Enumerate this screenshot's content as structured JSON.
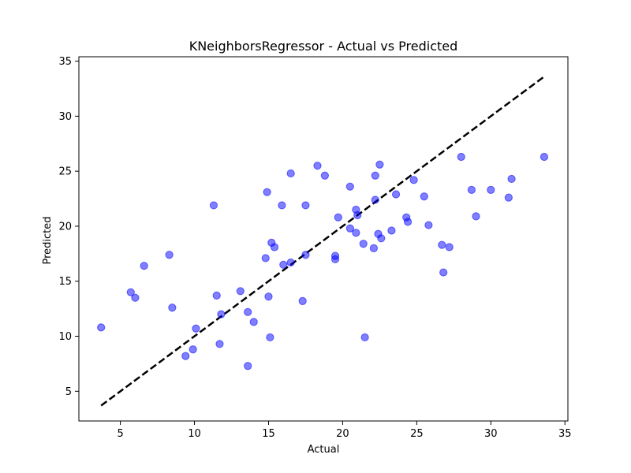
{
  "chart_data": {
    "type": "scatter",
    "title": "KNeighborsRegressor - Actual vs Predicted",
    "xlabel": "Actual",
    "ylabel": "Predicted",
    "xlim": [
      2.2,
      35.2
    ],
    "ylim": [
      2.3,
      35.4
    ],
    "xticks": [
      5,
      10,
      15,
      20,
      25,
      30,
      35
    ],
    "yticks": [
      5,
      10,
      15,
      20,
      25,
      30,
      35
    ],
    "grid": false,
    "point_color": "#0000ff",
    "point_alpha": 0.5,
    "reference_line": {
      "style": "dashed",
      "color": "#000000",
      "from": [
        3.7,
        3.7
      ],
      "to": [
        33.6,
        33.6
      ]
    },
    "points": [
      {
        "x": 3.7,
        "y": 10.8
      },
      {
        "x": 5.7,
        "y": 14.0
      },
      {
        "x": 6.0,
        "y": 13.5
      },
      {
        "x": 6.6,
        "y": 16.4
      },
      {
        "x": 8.3,
        "y": 17.4
      },
      {
        "x": 8.5,
        "y": 12.6
      },
      {
        "x": 9.4,
        "y": 8.2
      },
      {
        "x": 9.9,
        "y": 8.8
      },
      {
        "x": 10.1,
        "y": 10.7
      },
      {
        "x": 11.3,
        "y": 21.9
      },
      {
        "x": 11.5,
        "y": 13.7
      },
      {
        "x": 11.7,
        "y": 9.3
      },
      {
        "x": 11.8,
        "y": 12.0
      },
      {
        "x": 13.1,
        "y": 14.1
      },
      {
        "x": 13.6,
        "y": 12.2
      },
      {
        "x": 13.6,
        "y": 7.3
      },
      {
        "x": 14.0,
        "y": 11.3
      },
      {
        "x": 14.8,
        "y": 17.1
      },
      {
        "x": 14.9,
        "y": 23.1
      },
      {
        "x": 15.0,
        "y": 13.6
      },
      {
        "x": 15.1,
        "y": 9.9
      },
      {
        "x": 15.2,
        "y": 18.5
      },
      {
        "x": 15.4,
        "y": 18.1
      },
      {
        "x": 15.9,
        "y": 21.9
      },
      {
        "x": 16.0,
        "y": 16.5
      },
      {
        "x": 16.5,
        "y": 16.7
      },
      {
        "x": 16.5,
        "y": 24.8
      },
      {
        "x": 17.3,
        "y": 13.2
      },
      {
        "x": 17.5,
        "y": 17.4
      },
      {
        "x": 17.5,
        "y": 21.9
      },
      {
        "x": 18.3,
        "y": 25.5
      },
      {
        "x": 18.8,
        "y": 24.6
      },
      {
        "x": 19.5,
        "y": 17.3
      },
      {
        "x": 19.5,
        "y": 17.0
      },
      {
        "x": 19.7,
        "y": 20.8
      },
      {
        "x": 20.5,
        "y": 23.6
      },
      {
        "x": 20.5,
        "y": 19.8
      },
      {
        "x": 20.9,
        "y": 21.5
      },
      {
        "x": 20.9,
        "y": 19.4
      },
      {
        "x": 21.0,
        "y": 21.0
      },
      {
        "x": 21.4,
        "y": 18.4
      },
      {
        "x": 21.5,
        "y": 9.9
      },
      {
        "x": 22.1,
        "y": 18.0
      },
      {
        "x": 22.2,
        "y": 22.4
      },
      {
        "x": 22.2,
        "y": 24.6
      },
      {
        "x": 22.4,
        "y": 19.3
      },
      {
        "x": 22.5,
        "y": 25.6
      },
      {
        "x": 22.6,
        "y": 18.9
      },
      {
        "x": 23.3,
        "y": 19.6
      },
      {
        "x": 23.6,
        "y": 22.9
      },
      {
        "x": 24.3,
        "y": 20.8
      },
      {
        "x": 24.4,
        "y": 20.4
      },
      {
        "x": 24.8,
        "y": 24.2
      },
      {
        "x": 25.5,
        "y": 22.7
      },
      {
        "x": 25.8,
        "y": 20.1
      },
      {
        "x": 26.7,
        "y": 18.3
      },
      {
        "x": 26.8,
        "y": 15.8
      },
      {
        "x": 27.2,
        "y": 18.1
      },
      {
        "x": 28.0,
        "y": 26.3
      },
      {
        "x": 28.7,
        "y": 23.3
      },
      {
        "x": 29.0,
        "y": 20.9
      },
      {
        "x": 30.0,
        "y": 23.3
      },
      {
        "x": 31.2,
        "y": 22.6
      },
      {
        "x": 31.4,
        "y": 24.3
      },
      {
        "x": 33.6,
        "y": 26.3
      }
    ]
  }
}
